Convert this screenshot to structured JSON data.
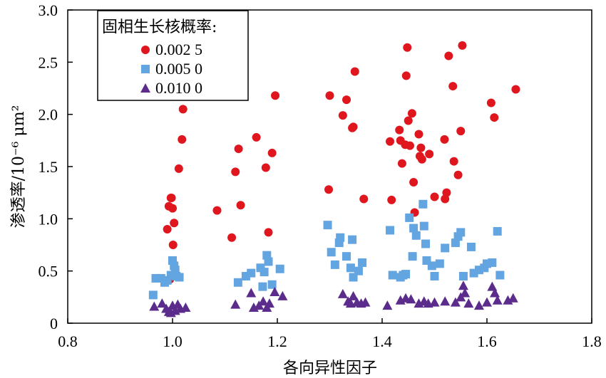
{
  "chart_data": {
    "type": "scatter",
    "xlabel": "各向异性因子",
    "ylabel": "渗透率/10⁻⁶ μm²",
    "xlim": [
      0.8,
      1.8
    ],
    "ylim": [
      0,
      3.0
    ],
    "x_ticks": [
      "0.8",
      "1.0",
      "1.2",
      "1.4",
      "1.6",
      "1.8"
    ],
    "y_ticks": [
      "0",
      "0.5",
      "1.0",
      "1.5",
      "2.0",
      "2.5",
      "3.0"
    ],
    "grid": false,
    "legend": {
      "title": "固相生长核概率:",
      "placement": "top-left"
    },
    "series": [
      {
        "name": "0.002 5",
        "color": "#e0161e",
        "marker": "circle",
        "points": [
          [
            0.997,
            1.2
          ],
          [
            0.993,
            1.12
          ],
          [
            1.0,
            1.1
          ],
          [
            0.998,
            1.2
          ],
          [
            1.003,
            0.96
          ],
          [
            1.001,
            0.75
          ],
          [
            0.99,
            0.9
          ],
          [
            0.995,
            0.42
          ],
          [
            1.02,
            2.05
          ],
          [
            1.018,
            1.76
          ],
          [
            1.012,
            1.48
          ],
          [
            1.085,
            1.08
          ],
          [
            1.113,
            0.82
          ],
          [
            1.12,
            1.45
          ],
          [
            1.126,
            1.67
          ],
          [
            1.13,
            1.13
          ],
          [
            1.16,
            1.78
          ],
          [
            1.178,
            1.49
          ],
          [
            1.183,
            0.87
          ],
          [
            1.19,
            1.63
          ],
          [
            1.196,
            2.18
          ],
          [
            1.298,
            1.28
          ],
          [
            1.3,
            2.18
          ],
          [
            1.325,
            1.99
          ],
          [
            1.332,
            2.14
          ],
          [
            1.343,
            1.87
          ],
          [
            1.345,
            1.88
          ],
          [
            1.348,
            2.41
          ],
          [
            1.365,
            1.19
          ],
          [
            1.415,
            1.74
          ],
          [
            1.418,
            1.18
          ],
          [
            1.433,
            1.85
          ],
          [
            1.435,
            1.75
          ],
          [
            1.438,
            1.53
          ],
          [
            1.444,
            1.71
          ],
          [
            1.446,
            2.37
          ],
          [
            1.448,
            2.64
          ],
          [
            1.45,
            1.94
          ],
          [
            1.453,
            1.7
          ],
          [
            1.457,
            2.01
          ],
          [
            1.46,
            1.35
          ],
          [
            1.462,
            1.06
          ],
          [
            1.47,
            1.81
          ],
          [
            1.472,
            1.6
          ],
          [
            1.474,
            1.68
          ],
          [
            1.476,
            1.57
          ],
          [
            1.49,
            1.62
          ],
          [
            1.5,
            1.21
          ],
          [
            1.519,
            1.76
          ],
          [
            1.52,
            1.19
          ],
          [
            1.523,
            1.25
          ],
          [
            1.527,
            2.56
          ],
          [
            1.535,
            2.27
          ],
          [
            1.537,
            1.55
          ],
          [
            1.545,
            1.42
          ],
          [
            1.55,
            1.84
          ],
          [
            1.553,
            2.66
          ],
          [
            1.608,
            2.11
          ],
          [
            1.614,
            1.97
          ],
          [
            1.655,
            2.24
          ]
        ]
      },
      {
        "name": "0.005 0",
        "color": "#63a5e1",
        "marker": "square",
        "points": [
          [
            0.963,
            0.27
          ],
          [
            0.968,
            0.43
          ],
          [
            0.978,
            0.43
          ],
          [
            0.985,
            0.39
          ],
          [
            0.99,
            0.41
          ],
          [
            0.997,
            0.46
          ],
          [
            1.0,
            0.6
          ],
          [
            1.003,
            0.55
          ],
          [
            1.005,
            0.51
          ],
          [
            1.007,
            0.45
          ],
          [
            1.013,
            0.44
          ],
          [
            1.125,
            0.39
          ],
          [
            1.14,
            0.45
          ],
          [
            1.15,
            0.48
          ],
          [
            1.168,
            0.53
          ],
          [
            1.172,
            0.35
          ],
          [
            1.175,
            0.49
          ],
          [
            1.18,
            0.65
          ],
          [
            1.183,
            0.59
          ],
          [
            1.19,
            0.37
          ],
          [
            1.205,
            0.52
          ],
          [
            1.296,
            0.94
          ],
          [
            1.303,
            0.68
          ],
          [
            1.31,
            0.56
          ],
          [
            1.318,
            0.77
          ],
          [
            1.32,
            0.82
          ],
          [
            1.332,
            0.64
          ],
          [
            1.34,
            0.53
          ],
          [
            1.343,
            0.8
          ],
          [
            1.345,
            0.44
          ],
          [
            1.355,
            0.5
          ],
          [
            1.362,
            0.58
          ],
          [
            1.415,
            0.89
          ],
          [
            1.42,
            0.46
          ],
          [
            1.435,
            0.44
          ],
          [
            1.44,
            0.46
          ],
          [
            1.445,
            0.47
          ],
          [
            1.452,
            1.01
          ],
          [
            1.458,
            0.64
          ],
          [
            1.46,
            0.91
          ],
          [
            1.465,
            0.84
          ],
          [
            1.478,
            1.14
          ],
          [
            1.48,
            0.93
          ],
          [
            1.483,
            0.76
          ],
          [
            1.485,
            0.6
          ],
          [
            1.495,
            0.55
          ],
          [
            1.5,
            0.45
          ],
          [
            1.51,
            0.57
          ],
          [
            1.52,
            0.72
          ],
          [
            1.54,
            0.77
          ],
          [
            1.545,
            0.83
          ],
          [
            1.55,
            0.87
          ],
          [
            1.555,
            0.45
          ],
          [
            1.57,
            0.73
          ],
          [
            1.575,
            0.48
          ],
          [
            1.585,
            0.51
          ],
          [
            1.595,
            0.53
          ],
          [
            1.6,
            0.57
          ],
          [
            1.61,
            0.58
          ],
          [
            1.62,
            0.88
          ],
          [
            1.625,
            0.46
          ]
        ]
      },
      {
        "name": "0.010 0",
        "color": "#5b2c8c",
        "marker": "triangle",
        "points": [
          [
            0.965,
            0.16
          ],
          [
            0.98,
            0.19
          ],
          [
            0.988,
            0.14
          ],
          [
            0.993,
            0.11
          ],
          [
            0.997,
            0.1
          ],
          [
            1.0,
            0.17
          ],
          [
            1.005,
            0.12
          ],
          [
            1.01,
            0.18
          ],
          [
            1.015,
            0.14
          ],
          [
            1.025,
            0.15
          ],
          [
            1.12,
            0.18
          ],
          [
            1.15,
            0.29
          ],
          [
            1.155,
            0.15
          ],
          [
            1.165,
            0.17
          ],
          [
            1.173,
            0.21
          ],
          [
            1.18,
            0.15
          ],
          [
            1.185,
            0.19
          ],
          [
            1.195,
            0.3
          ],
          [
            1.21,
            0.26
          ],
          [
            1.325,
            0.28
          ],
          [
            1.335,
            0.21
          ],
          [
            1.34,
            0.19
          ],
          [
            1.345,
            0.26
          ],
          [
            1.352,
            0.2
          ],
          [
            1.36,
            0.19
          ],
          [
            1.368,
            0.2
          ],
          [
            1.41,
            0.17
          ],
          [
            1.435,
            0.22
          ],
          [
            1.445,
            0.24
          ],
          [
            1.455,
            0.23
          ],
          [
            1.47,
            0.19
          ],
          [
            1.48,
            0.21
          ],
          [
            1.488,
            0.19
          ],
          [
            1.5,
            0.2
          ],
          [
            1.52,
            0.21
          ],
          [
            1.54,
            0.2
          ],
          [
            1.55,
            0.25
          ],
          [
            1.555,
            0.36
          ],
          [
            1.558,
            0.29
          ],
          [
            1.565,
            0.19
          ],
          [
            1.585,
            0.17
          ],
          [
            1.6,
            0.2
          ],
          [
            1.61,
            0.35
          ],
          [
            1.615,
            0.29
          ],
          [
            1.62,
            0.22
          ],
          [
            1.64,
            0.22
          ],
          [
            1.65,
            0.24
          ]
        ]
      }
    ]
  }
}
